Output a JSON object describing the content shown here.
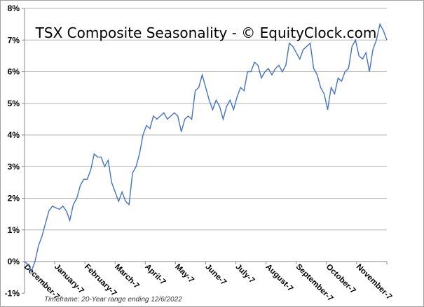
{
  "chart_data": {
    "type": "line",
    "title": "TSX Composite Seasonality - © EquityClock.com",
    "footnote": "Timeframe: 20-Year range ending 12/6/2022",
    "xlabel": "",
    "ylabel": "",
    "ylim": [
      -1,
      8
    ],
    "yticks": [
      -1,
      0,
      1,
      2,
      3,
      4,
      5,
      6,
      7,
      8
    ],
    "ytick_labels": [
      "-1%",
      "0%",
      "1%",
      "2%",
      "3%",
      "4%",
      "5%",
      "6%",
      "7%",
      "8%"
    ],
    "xtick_labels": [
      "December-7",
      "January-7",
      "February-7",
      "March-7",
      "April-7",
      "May-7",
      "June-7",
      "July-7",
      "August-7",
      "September-7",
      "October-7",
      "November-7"
    ],
    "grid": "horizontal",
    "line_color": "#4472C4",
    "series": [
      {
        "values": [
          0,
          -0.1,
          -0.3,
          0.0,
          0.5,
          0.8,
          1.2,
          1.6,
          1.75,
          1.7,
          1.65,
          1.75,
          1.6,
          1.3,
          1.8,
          2.0,
          2.4,
          2.6,
          2.6,
          2.9,
          3.4,
          3.3,
          3.3,
          3.0,
          3.2,
          2.5,
          2.2,
          1.9,
          2.2,
          1.9,
          1.8,
          2.8,
          3.0,
          3.4,
          4.0,
          4.3,
          4.2,
          4.6,
          4.5,
          4.6,
          4.7,
          4.5,
          4.6,
          4.7,
          4.6,
          4.1,
          4.5,
          4.6,
          4.5,
          5.4,
          5.5,
          5.9,
          5.5,
          5.1,
          4.8,
          5.1,
          4.9,
          4.5,
          4.9,
          5.1,
          4.8,
          5.2,
          5.5,
          5.4,
          6.0,
          6.0,
          6.3,
          6.2,
          5.8,
          6.0,
          6.1,
          5.9,
          6.1,
          6.2,
          6.0,
          6.2,
          6.9,
          6.8,
          6.6,
          6.4,
          6.7,
          6.8,
          6.9,
          6.1,
          5.9,
          5.5,
          5.3,
          4.8,
          5.5,
          5.3,
          5.8,
          5.7,
          6.0,
          6.1,
          6.8,
          7.0,
          6.5,
          6.4,
          6.6,
          6.0,
          6.7,
          7.0,
          7.5,
          7.3,
          7.0
        ]
      }
    ]
  }
}
